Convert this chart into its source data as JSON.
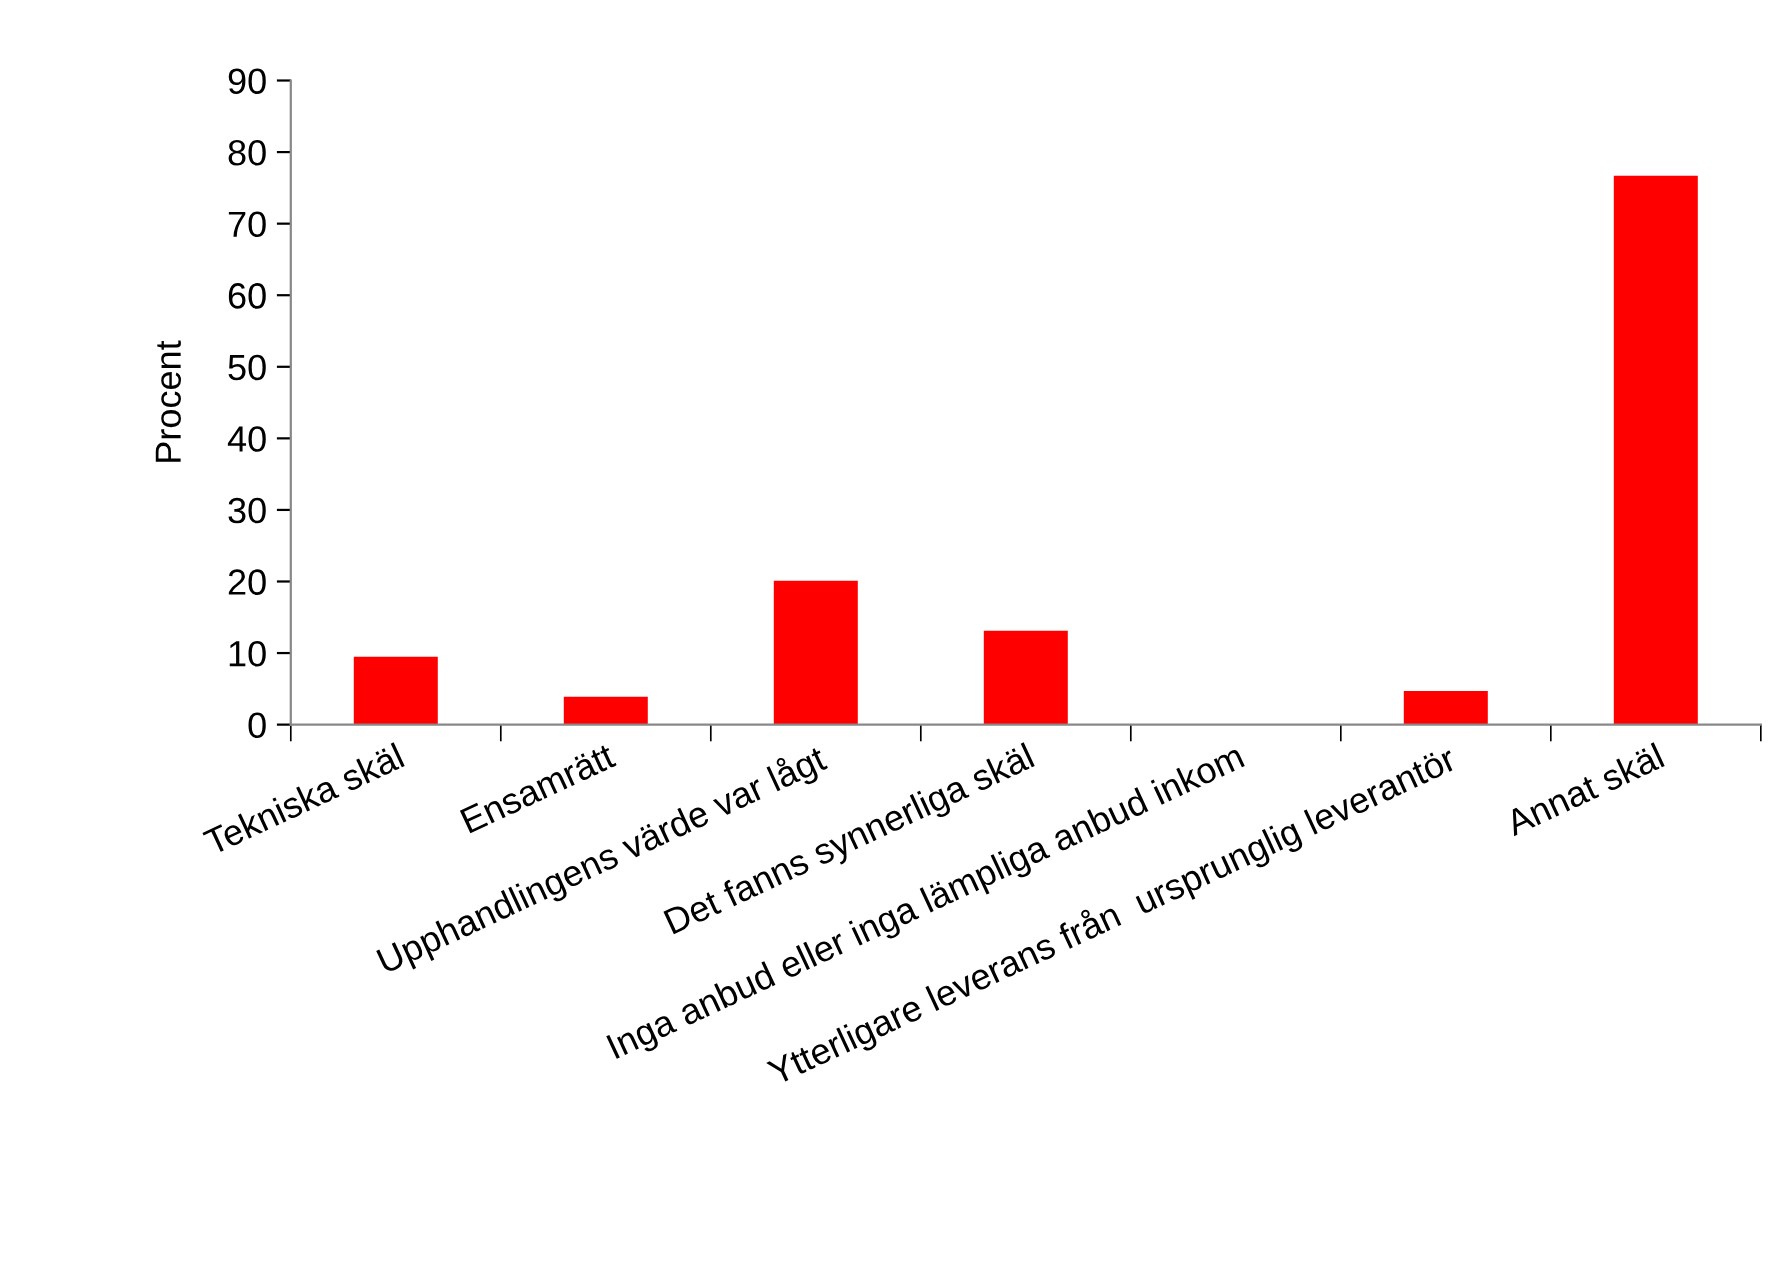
{
  "chart_data": {
    "type": "bar",
    "ylabel": "Procent",
    "categories": [
      "Tekniska skäl",
      "Ensamrätt",
      "Upphandlingens värde var lågt",
      "Det fanns synnerliga skäl",
      "Inga anbud eller inga lämpliga anbud inkom",
      "Ytterligare leverans från  ursprunglig leverantör",
      "Annat skäl"
    ],
    "values": [
      9.5,
      3.9,
      20.1,
      13.1,
      0,
      4.7,
      76.7
    ],
    "color": "#ff0000",
    "ylim": [
      0,
      90
    ],
    "yticks": [
      0,
      10,
      20,
      30,
      40,
      50,
      60,
      70,
      80,
      90
    ],
    "grid": false,
    "legend": false
  }
}
